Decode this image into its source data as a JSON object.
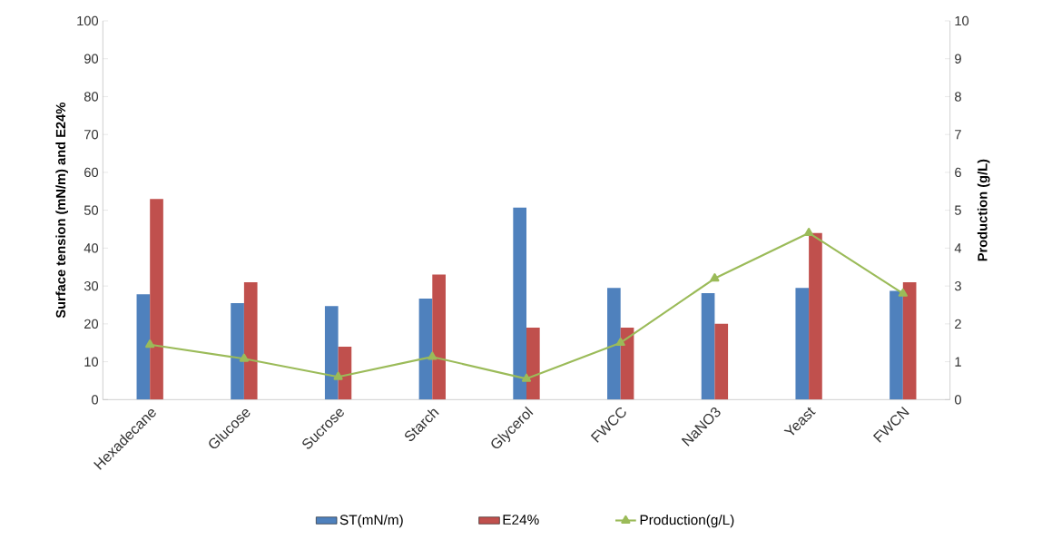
{
  "chart_data": {
    "type": "bar",
    "categories": [
      "Hexadecane",
      "Glucose",
      "Sucrose",
      "Starch",
      "Glycerol",
      "FWCC",
      "NaNO3",
      "Yeast",
      "FWCN"
    ],
    "series": [
      {
        "name": "ST(mN/m)",
        "color": "#4f81bd",
        "values": [
          27.8,
          25.5,
          24.7,
          26.7,
          50.7,
          29.5,
          28.1,
          29.5,
          28.7
        ]
      },
      {
        "name": "E24%",
        "color": "#c0504d",
        "values": [
          53,
          31,
          14,
          33,
          19,
          19,
          20,
          44,
          31
        ]
      },
      {
        "name": "Production(g/L)",
        "type": "line",
        "axis": "y2",
        "marker": "triangle",
        "color": "#9bbb59",
        "values": [
          1.45,
          1.08,
          0.6,
          1.13,
          0.55,
          1.5,
          3.2,
          4.4,
          2.8
        ]
      }
    ],
    "ylabel": "Surface tension (mN/m) and  E24%",
    "y2label": "Production (g/L)",
    "ylim": [
      0,
      100
    ],
    "yticks": [
      0,
      10,
      20,
      30,
      40,
      50,
      60,
      70,
      80,
      90,
      100
    ],
    "y2lim": [
      0,
      10
    ],
    "y2ticks": [
      0,
      1,
      2,
      3,
      4,
      5,
      6,
      7,
      8,
      9,
      10
    ],
    "legend": "bottom"
  }
}
